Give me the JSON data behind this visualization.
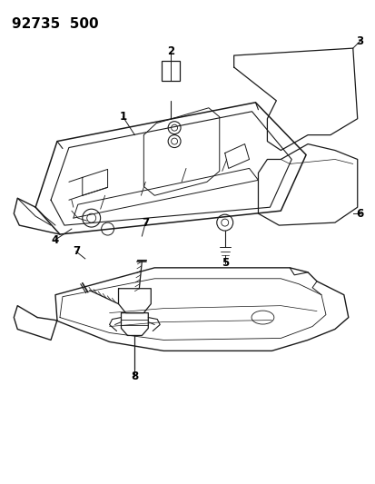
{
  "title": "92735  500",
  "background_color": "#ffffff",
  "line_color": "#1a1a1a",
  "label_color": "#000000",
  "title_fontsize": 11,
  "label_fontsize": 8.5,
  "figsize": [
    4.14,
    5.33
  ],
  "dpi": 100
}
